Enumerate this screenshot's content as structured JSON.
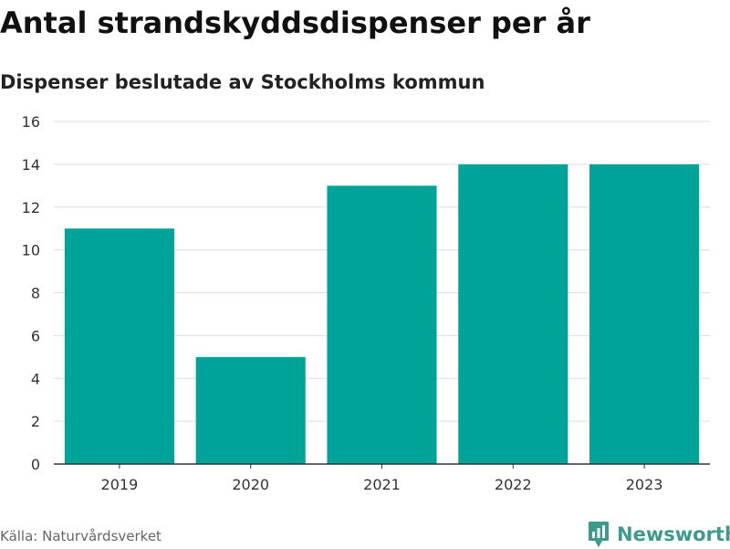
{
  "chart_data": {
    "type": "bar",
    "title": "Antal strandskyddsdispenser per år",
    "subtitle": "Dispenser beslutade av Stockholms kommun",
    "categories": [
      "2019",
      "2020",
      "2021",
      "2022",
      "2023"
    ],
    "values": [
      11,
      5,
      13,
      14,
      14
    ],
    "xlabel": "",
    "ylabel": "",
    "ylim": [
      0,
      16
    ],
    "yticks": [
      0,
      2,
      4,
      6,
      8,
      10,
      12,
      14,
      16
    ],
    "grid": true,
    "bar_color": "#00a398"
  },
  "footer": {
    "source": "Källa: Naturvårdsverket",
    "brand": "Newsworthy",
    "brand_color": "#3d9b8c",
    "brand_icon": "newsworthy-logo-icon"
  }
}
